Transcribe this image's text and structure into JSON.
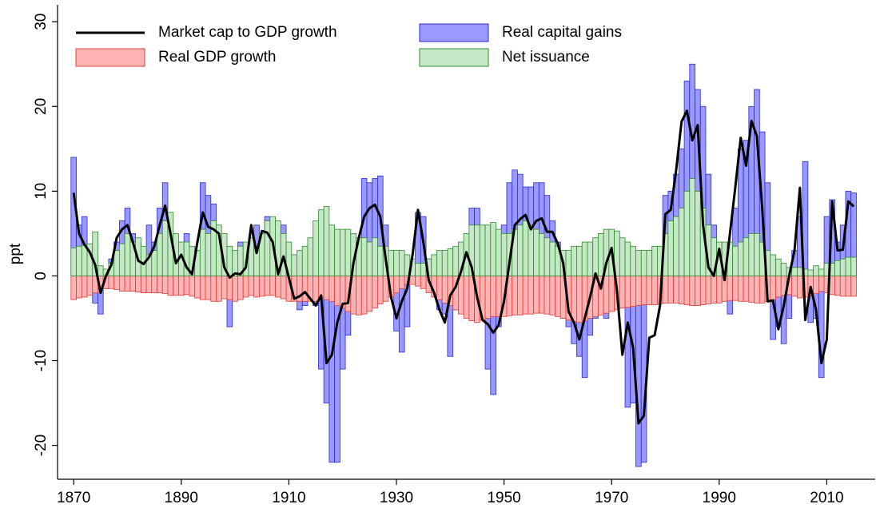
{
  "chart_data": {
    "type": "bar",
    "y_label": "ppt",
    "x": [
      1870,
      1871,
      1872,
      1873,
      1874,
      1875,
      1876,
      1877,
      1878,
      1879,
      1880,
      1881,
      1882,
      1883,
      1884,
      1885,
      1886,
      1887,
      1888,
      1889,
      1890,
      1891,
      1892,
      1893,
      1894,
      1895,
      1896,
      1897,
      1898,
      1899,
      1900,
      1901,
      1902,
      1903,
      1904,
      1905,
      1906,
      1907,
      1908,
      1909,
      1910,
      1911,
      1912,
      1913,
      1914,
      1915,
      1916,
      1917,
      1918,
      1919,
      1920,
      1921,
      1922,
      1923,
      1924,
      1925,
      1926,
      1927,
      1928,
      1929,
      1930,
      1931,
      1932,
      1933,
      1934,
      1935,
      1936,
      1937,
      1938,
      1939,
      1940,
      1941,
      1942,
      1943,
      1944,
      1945,
      1946,
      1947,
      1948,
      1949,
      1950,
      1951,
      1952,
      1953,
      1954,
      1955,
      1956,
      1957,
      1958,
      1959,
      1960,
      1961,
      1962,
      1963,
      1964,
      1965,
      1966,
      1967,
      1968,
      1969,
      1970,
      1971,
      1972,
      1973,
      1974,
      1975,
      1976,
      1977,
      1978,
      1979,
      1980,
      1981,
      1982,
      1983,
      1984,
      1985,
      1986,
      1987,
      1988,
      1989,
      1990,
      1991,
      1992,
      1993,
      1994,
      1995,
      1996,
      1997,
      1998,
      1999,
      2000,
      2001,
      2002,
      2003,
      2004,
      2005,
      2006,
      2007,
      2008,
      2009,
      2010,
      2011,
      2012,
      2013,
      2014,
      2015
    ],
    "series": [
      {
        "name": "Market cap to GDP growth",
        "type": "line",
        "color": "#000000",
        "values": [
          9.8,
          5,
          3.7,
          2.8,
          1.3,
          -2,
          0,
          1.3,
          4.5,
          5.5,
          6,
          4,
          1.8,
          1.4,
          2.2,
          3.5,
          6,
          8.3,
          5,
          1.5,
          2.5,
          1,
          0.2,
          4,
          7.5,
          5.8,
          5.5,
          5,
          1,
          -0.2,
          0.3,
          0.2,
          1,
          6,
          2.7,
          5.3,
          5.1,
          4,
          0.2,
          2.3,
          -0.2,
          -2.7,
          -2.4,
          -1.9,
          -2.7,
          -3.5,
          -2.3,
          -10.3,
          -9.3,
          -5.5,
          -3.3,
          -3.2,
          1.5,
          4.5,
          7,
          8,
          8.4,
          7,
          2,
          -2.5,
          -5,
          -3,
          -1.5,
          2.5,
          7.8,
          4,
          -0.5,
          -2,
          -4,
          -5.5,
          -2.3,
          -1.3,
          0.5,
          2.8,
          1,
          -2.5,
          -5.2,
          -5.7,
          -6.7,
          -5.8,
          -3,
          1.5,
          6,
          6.7,
          7.2,
          5.5,
          6.5,
          6.8,
          5.2,
          5.2,
          3.8,
          1.5,
          -4.2,
          -5.5,
          -7.5,
          -5,
          -2.5,
          0.3,
          -1.5,
          1.5,
          3.3,
          -1.8,
          -9.3,
          -5.5,
          -8.5,
          -17.4,
          -16.5,
          -7.3,
          -7,
          -3.5,
          7.3,
          7.8,
          12.5,
          18.2,
          19.5,
          16,
          17.8,
          6,
          1,
          0,
          3.2,
          -0.5,
          5,
          10.5,
          16.3,
          13,
          18.3,
          16.5,
          8,
          -3,
          -2.9,
          -6.3,
          -3.5,
          0,
          3,
          10.4,
          -5.2,
          -1.3,
          -4,
          -10.3,
          -7.5,
          8.8,
          3,
          3.1,
          8.8,
          8.2
        ]
      },
      {
        "name": "Real capital gains",
        "type": "bar",
        "color": "#9999ff",
        "edgecolor": "#2b2bd0",
        "values": [
          14,
          6,
          7,
          3,
          -3.2,
          -4.5,
          -1.5,
          2,
          4,
          6.5,
          8,
          5,
          4,
          1,
          6,
          4,
          8,
          11,
          4,
          2,
          -2,
          5,
          2,
          -1,
          11,
          9.5,
          8.5,
          5,
          -1,
          -6,
          0,
          4,
          3,
          -1,
          6,
          4,
          7,
          2,
          -1,
          6,
          -1,
          -2,
          -4,
          -3.5,
          -2.5,
          -3.5,
          -11,
          -15,
          -22,
          -22,
          -11,
          -7,
          -4,
          4,
          11.5,
          11,
          11.5,
          11.8,
          6,
          -1,
          -6.5,
          -9,
          -6,
          0.5,
          7.5,
          7,
          2,
          -2,
          -4,
          -4.5,
          -9.5,
          -4,
          -3,
          1,
          8,
          8,
          -4,
          -11,
          -14,
          -6,
          6,
          11,
          12.5,
          12,
          10.5,
          10.5,
          11,
          11,
          9.5,
          6.5,
          4,
          -5,
          -6,
          -8,
          -9.5,
          -12,
          -7,
          -5,
          1,
          -5,
          1,
          3,
          -1,
          -15.5,
          -15,
          -22.5,
          -22,
          -3,
          -2,
          -2,
          9.5,
          10,
          12,
          15,
          23,
          25,
          22,
          20,
          12,
          6,
          1,
          -3,
          -4.5,
          8,
          15,
          16,
          20,
          22,
          17,
          11,
          -7.5,
          -6,
          -8,
          -5,
          3,
          7,
          13.5,
          -5.5,
          -5,
          -12,
          7,
          9,
          4,
          6,
          10,
          9.8
        ]
      },
      {
        "name": "Real GDP growth",
        "type": "bar",
        "color": "#ffb3b3",
        "edgecolor": "#e03c3c",
        "values": [
          -2.8,
          -2.6,
          -2.5,
          -2.3,
          -2,
          -1.5,
          -1.5,
          -1.5,
          -1.6,
          -1.8,
          -1.8,
          -1.8,
          -1.9,
          -2,
          -2,
          -2,
          -2,
          -2.1,
          -2.3,
          -2.3,
          -2.3,
          -2.2,
          -2.4,
          -2.6,
          -2.8,
          -2.8,
          -3,
          -3,
          -2.7,
          -2.8,
          -3,
          -2.8,
          -2.5,
          -2.3,
          -2.5,
          -2.4,
          -2.3,
          -2.3,
          -2.5,
          -2.7,
          -3,
          -3,
          -3,
          -3,
          -3,
          -3,
          -2.5,
          -2.8,
          -3,
          -3.5,
          -3.8,
          -4.2,
          -4.5,
          -4.6,
          -4.5,
          -4.2,
          -3.8,
          -3.3,
          -3,
          -2.5,
          -2,
          -1.5,
          -1,
          -1,
          -1.2,
          -1.5,
          -2,
          -2.5,
          -2.8,
          -3.2,
          -3.5,
          -4,
          -4.5,
          -5,
          -5.3,
          -5.5,
          -5.2,
          -5,
          -4.8,
          -4.8,
          -4.8,
          -4.7,
          -4.6,
          -4.6,
          -4.5,
          -4.5,
          -4.4,
          -4.4,
          -4.5,
          -4.6,
          -4.8,
          -5,
          -5.2,
          -5.4,
          -5.5,
          -5.3,
          -5,
          -4.8,
          -4.6,
          -4.4,
          -4.2,
          -4,
          -3.8,
          -3.7,
          -3.6,
          -3.5,
          -3.4,
          -3.4,
          -3.4,
          -3.3,
          -3.2,
          -3.2,
          -3.2,
          -3.3,
          -3.4,
          -3.5,
          -3.5,
          -3.4,
          -3.3,
          -3.2,
          -3.2,
          -3,
          -2.9,
          -2.9,
          -3,
          -3,
          -3.1,
          -3.2,
          -3.2,
          -3,
          -2.8,
          -2.5,
          -2.3,
          -2.2,
          -2.4,
          -2.6,
          -2.5,
          -2.3,
          -2.1,
          -1.8,
          -2,
          -2.2,
          -2.3,
          -2.4,
          -2.4,
          -2.4
        ]
      },
      {
        "name": "Net issuance",
        "type": "bar",
        "color": "#c6e8c6",
        "edgecolor": "#2e8b2e",
        "values": [
          3.3,
          3.5,
          3.6,
          3.8,
          5.2,
          1.2,
          0.8,
          1.5,
          3,
          3.8,
          5,
          4,
          4.5,
          3.5,
          2.5,
          3,
          5,
          6.5,
          7.5,
          5,
          4,
          4,
          3.5,
          3,
          5.5,
          5,
          6.5,
          6,
          5,
          3.5,
          3,
          3.5,
          4,
          4.5,
          3.5,
          5,
          6.5,
          7,
          6.5,
          5,
          4,
          2.5,
          3,
          3.5,
          4.5,
          6.5,
          7.8,
          8.2,
          6,
          5.5,
          5.5,
          5.5,
          5,
          4.5,
          4.5,
          4,
          4.5,
          3.5,
          3.5,
          3,
          3,
          3,
          2.5,
          2,
          1.5,
          1.5,
          2,
          2.5,
          3,
          3,
          3.2,
          3.5,
          4,
          5,
          6,
          6,
          6,
          6,
          6.3,
          5.5,
          5,
          5,
          5.5,
          6,
          6.5,
          6,
          5.5,
          5,
          4.5,
          4,
          3.5,
          3,
          3,
          3.5,
          3.5,
          4,
          4,
          4.5,
          5,
          5.5,
          5.5,
          5.3,
          4.5,
          4,
          3.5,
          3,
          3,
          3,
          3.5,
          3.5,
          5,
          6.5,
          7,
          8,
          10,
          11.5,
          10,
          8,
          6,
          4.5,
          4,
          4,
          4,
          3.5,
          4,
          4.5,
          5,
          5,
          4,
          3,
          2.5,
          2,
          1.5,
          1,
          1,
          1,
          0.8,
          0.7,
          1.2,
          0.8,
          1.5,
          1.5,
          1.8,
          2,
          2.2,
          2.2
        ]
      }
    ],
    "xlim": [
      1867,
      2019
    ],
    "xticks": [
      1870,
      1890,
      1910,
      1930,
      1950,
      1970,
      1990,
      2010
    ],
    "ylim": [
      -24,
      32
    ],
    "yticks": [
      -20,
      -10,
      0,
      10,
      20,
      30
    ],
    "legend": "upper left",
    "legend_columns": 2
  }
}
